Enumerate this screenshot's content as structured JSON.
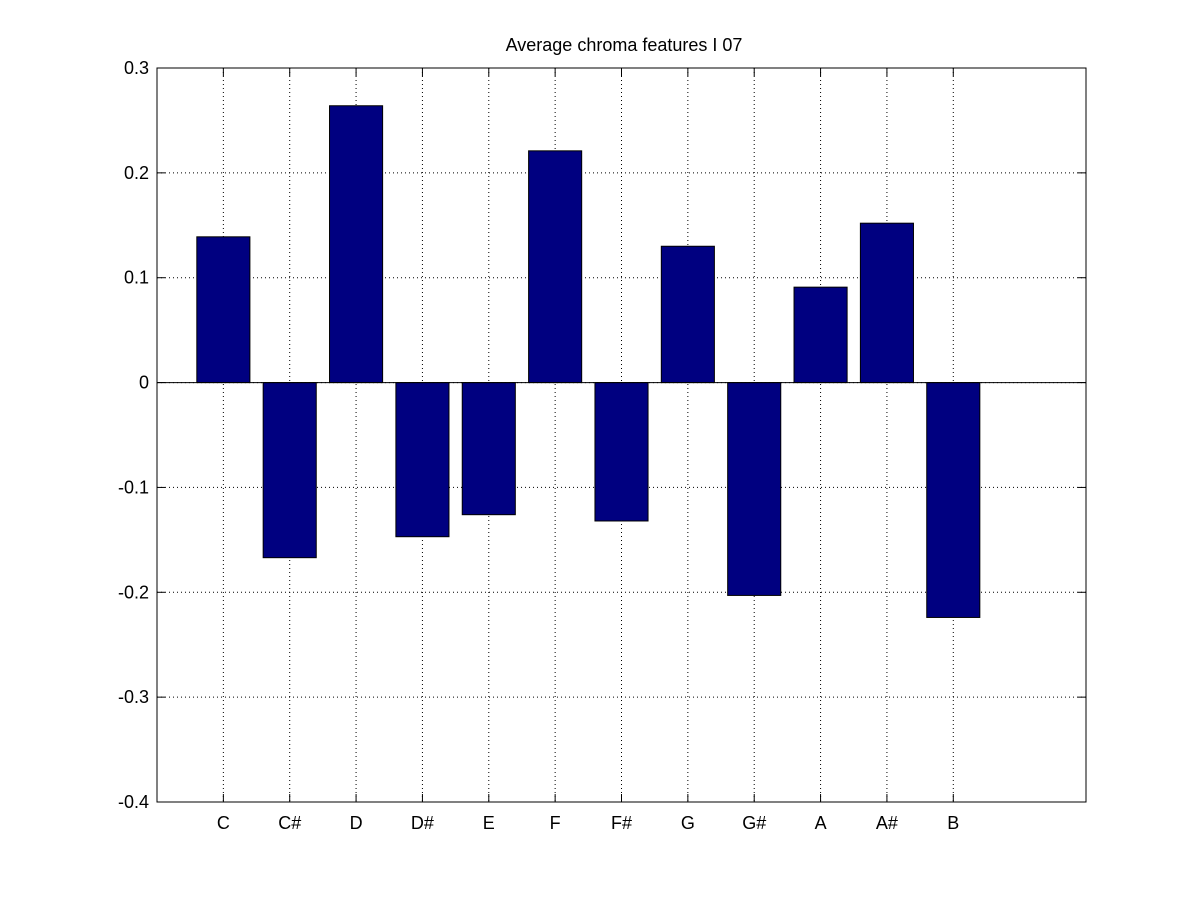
{
  "chart_data": {
    "type": "bar",
    "title": "Average chroma features I 07",
    "xlabel": "",
    "ylabel": "",
    "categories": [
      "C",
      "C#",
      "D",
      "D#",
      "E",
      "F",
      "F#",
      "G",
      "G#",
      "A",
      "A#",
      "B"
    ],
    "values": [
      0.139,
      -0.167,
      0.264,
      -0.147,
      -0.126,
      0.221,
      -0.132,
      0.13,
      -0.203,
      0.091,
      0.152,
      -0.224
    ],
    "ylim": [
      -0.4,
      0.3
    ],
    "xlim": [
      0,
      14
    ],
    "yticks": [
      -0.4,
      -0.3,
      -0.2,
      -0.1,
      0,
      0.1,
      0.2,
      0.3
    ],
    "ytick_labels": [
      "-0.4",
      "-0.3",
      "-0.2",
      "-0.1",
      "0",
      "0.1",
      "0.2",
      "0.3"
    ],
    "bar_color": "#000080",
    "grid": true,
    "grid_style": "dotted"
  }
}
